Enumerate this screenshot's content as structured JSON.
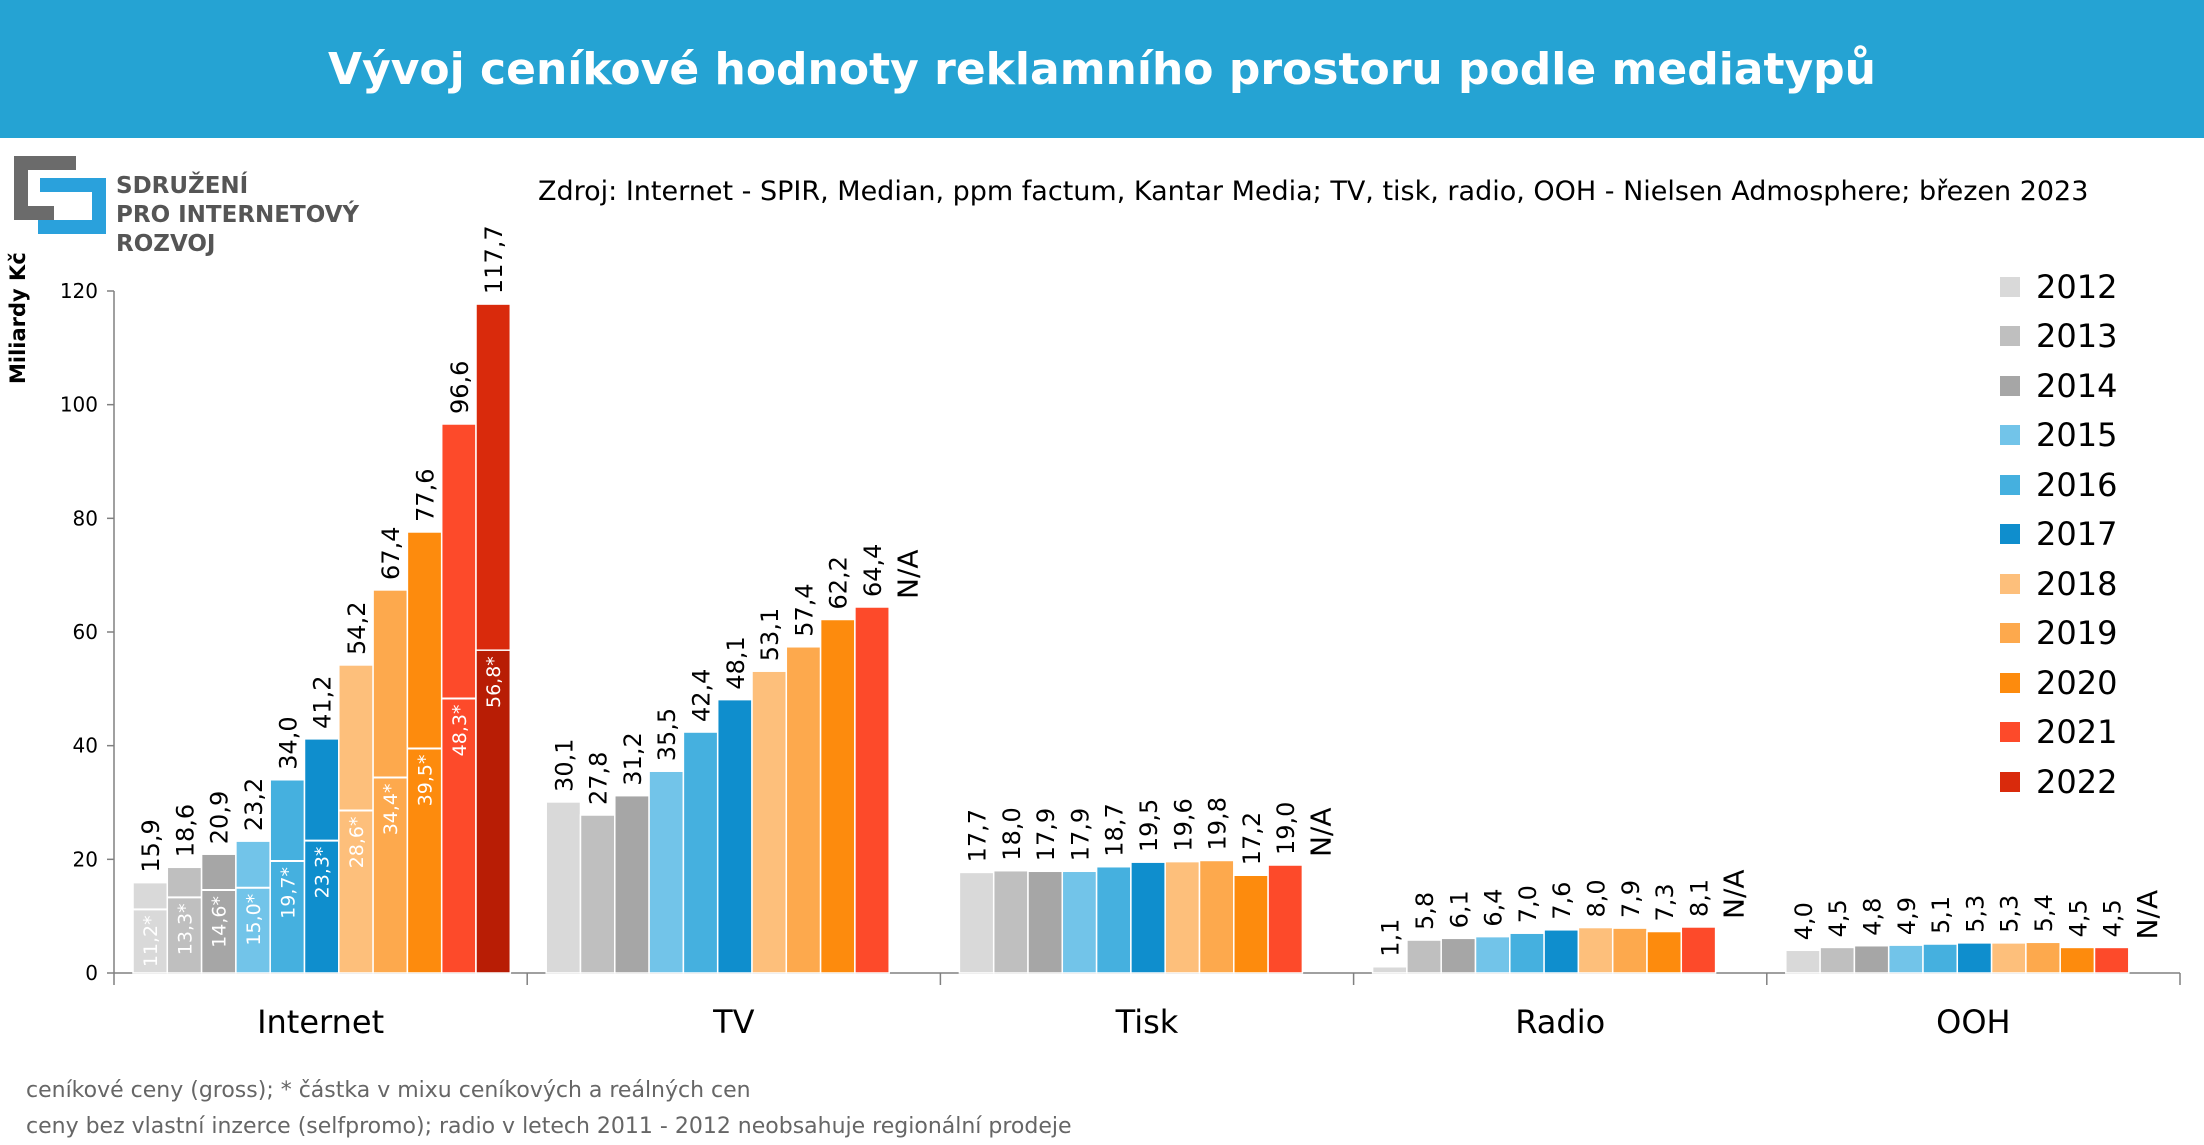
{
  "header": {
    "title": "Vývoj ceníkové hodnoty reklamního prostoru podle mediatypů"
  },
  "logo": {
    "line1": "SDRUŽENÍ",
    "line2": "PRO INTERNETOVÝ",
    "line3": "ROZVOJ",
    "colors": [
      "#6b6b6b",
      "#2aa1dc"
    ]
  },
  "source": "Zdroj: Internet - SPIR, Median, ppm factum, Kantar Media; TV, tisk, radio, OOH - Nielsen Admosphere; březen 2023",
  "footnotes": [
    "ceníkové ceny (gross); * částka v mixu ceníkových a reálných cen",
    "ceny bez vlastní inzerce (selfpromo); radio v letech 2011  - 2012 neobsahuje regionální prodeje"
  ],
  "chart_data": {
    "type": "bar",
    "ylabel": "Miliardy Kč",
    "ylim": [
      0,
      120
    ],
    "yticks": [
      "0",
      "20",
      "40",
      "60",
      "80",
      "100",
      "120"
    ],
    "grid": false,
    "legend_position": "right",
    "categories": [
      "Internet",
      "TV",
      "Tisk",
      "Radio",
      "OOH"
    ],
    "series": [
      {
        "name": "2012",
        "color": "#d9d9d9",
        "values": [
          15.9,
          30.1,
          17.7,
          1.1,
          4.0
        ],
        "labels": [
          "15,9",
          "30,1",
          "17,7",
          "1,1",
          "4,0"
        ],
        "inner_values": [
          11.2,
          null,
          null,
          null,
          null
        ],
        "inner_labels": [
          "11,2*",
          null,
          null,
          null,
          null
        ]
      },
      {
        "name": "2013",
        "color": "#bfbfbf",
        "values": [
          18.6,
          27.8,
          18.0,
          5.8,
          4.5
        ],
        "labels": [
          "18,6",
          "27,8",
          "18,0",
          "5,8",
          "4,5"
        ],
        "inner_values": [
          13.3,
          null,
          null,
          null,
          null
        ],
        "inner_labels": [
          "13,3*",
          null,
          null,
          null,
          null
        ]
      },
      {
        "name": "2014",
        "color": "#a6a6a6",
        "values": [
          20.9,
          31.2,
          17.9,
          6.1,
          4.8
        ],
        "labels": [
          "20,9",
          "31,2",
          "17,9",
          "6,1",
          "4,8"
        ],
        "inner_values": [
          14.6,
          null,
          null,
          null,
          null
        ],
        "inner_labels": [
          "14,6*",
          null,
          null,
          null,
          null
        ]
      },
      {
        "name": "2015",
        "color": "#72c4e9",
        "values": [
          23.2,
          35.5,
          17.9,
          6.4,
          4.9
        ],
        "labels": [
          "23,2",
          "35,5",
          "17,9",
          "6,4",
          "4,9"
        ],
        "inner_values": [
          15.0,
          null,
          null,
          null,
          null
        ],
        "inner_labels": [
          "15,0*",
          null,
          null,
          null,
          null
        ]
      },
      {
        "name": "2016",
        "color": "#45b0df",
        "values": [
          34.0,
          42.4,
          18.7,
          7.0,
          5.1
        ],
        "labels": [
          "34,0",
          "42,4",
          "18,7",
          "7,0",
          "5,1"
        ],
        "inner_values": [
          19.7,
          null,
          null,
          null,
          null
        ],
        "inner_labels": [
          "19,7*",
          null,
          null,
          null,
          null
        ]
      },
      {
        "name": "2017",
        "color": "#0f8ecd",
        "values": [
          41.2,
          48.1,
          19.5,
          7.6,
          5.3
        ],
        "labels": [
          "41,2",
          "48,1",
          "19,5",
          "7,6",
          "5,3"
        ],
        "inner_values": [
          23.3,
          null,
          null,
          null,
          null
        ],
        "inner_labels": [
          "23,3*",
          null,
          null,
          null,
          null
        ]
      },
      {
        "name": "2018",
        "color": "#fdbf7b",
        "values": [
          54.2,
          53.1,
          19.6,
          8.0,
          5.3
        ],
        "labels": [
          "54,2",
          "53,1",
          "19,6",
          "8,0",
          "5,3"
        ],
        "inner_values": [
          28.6,
          null,
          null,
          null,
          null
        ],
        "inner_labels": [
          "28,6*",
          null,
          null,
          null,
          null
        ]
      },
      {
        "name": "2019",
        "color": "#fda94d",
        "values": [
          67.4,
          57.4,
          19.8,
          7.9,
          5.4
        ],
        "labels": [
          "67,4",
          "57,4",
          "19,8",
          "7,9",
          "5,4"
        ],
        "inner_values": [
          34.4,
          null,
          null,
          null,
          null
        ],
        "inner_labels": [
          "34,4*",
          null,
          null,
          null,
          null
        ]
      },
      {
        "name": "2020",
        "color": "#fd8b0d",
        "values": [
          77.6,
          62.2,
          17.2,
          7.3,
          4.5
        ],
        "labels": [
          "77,6",
          "62,2",
          "17,2",
          "7,3",
          "4,5"
        ],
        "inner_values": [
          39.5,
          null,
          null,
          null,
          null
        ],
        "inner_labels": [
          "39,5*",
          null,
          null,
          null,
          null
        ]
      },
      {
        "name": "2021",
        "color": "#fd4a2a",
        "values": [
          96.6,
          64.4,
          19.0,
          8.1,
          4.5
        ],
        "labels": [
          "96,6",
          "64,4",
          "19,0",
          "8,1",
          "4,5"
        ],
        "inner_values": [
          48.3,
          null,
          null,
          null,
          null
        ],
        "inner_labels": [
          "48,3*",
          null,
          null,
          null,
          null
        ]
      },
      {
        "name": "2022",
        "color": "#d92a0c",
        "values": [
          117.7,
          null,
          null,
          null,
          null
        ],
        "labels": [
          "117,7",
          "N/A",
          "N/A",
          "N/A",
          "N/A"
        ],
        "inner_values": [
          56.8,
          null,
          null,
          null,
          null
        ],
        "inner_labels": [
          "56,8*",
          null,
          null,
          null,
          null
        ],
        "inner_color": "#b81d05"
      }
    ]
  }
}
